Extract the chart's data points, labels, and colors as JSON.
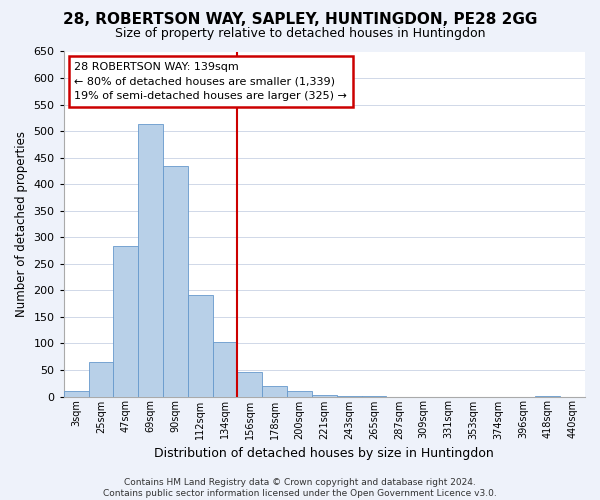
{
  "title": "28, ROBERTSON WAY, SAPLEY, HUNTINGDON, PE28 2GG",
  "subtitle": "Size of property relative to detached houses in Huntingdon",
  "xlabel": "Distribution of detached houses by size in Huntingdon",
  "ylabel": "Number of detached properties",
  "bar_labels": [
    "3sqm",
    "25sqm",
    "47sqm",
    "69sqm",
    "90sqm",
    "112sqm",
    "134sqm",
    "156sqm",
    "178sqm",
    "200sqm",
    "221sqm",
    "243sqm",
    "265sqm",
    "287sqm",
    "309sqm",
    "331sqm",
    "353sqm",
    "374sqm",
    "396sqm",
    "418sqm",
    "440sqm"
  ],
  "bar_heights": [
    10,
    65,
    283,
    513,
    435,
    192,
    103,
    46,
    19,
    10,
    2,
    1,
    1,
    0,
    0,
    0,
    0,
    0,
    0,
    1,
    0
  ],
  "bar_color": "#b8d0e8",
  "bar_edge_color": "#6699cc",
  "vline_x": 7,
  "vline_color": "#cc0000",
  "annotation_lines": [
    "28 ROBERTSON WAY: 139sqm",
    "← 80% of detached houses are smaller (1,339)",
    "19% of semi-detached houses are larger (325) →"
  ],
  "ylim": [
    0,
    650
  ],
  "yticks": [
    0,
    50,
    100,
    150,
    200,
    250,
    300,
    350,
    400,
    450,
    500,
    550,
    600,
    650
  ],
  "footer_lines": [
    "Contains HM Land Registry data © Crown copyright and database right 2024.",
    "Contains public sector information licensed under the Open Government Licence v3.0."
  ],
  "bg_color": "#eef2fa",
  "plot_bg_color": "#ffffff",
  "grid_color": "#d0d8e8",
  "title_fontsize": 11,
  "subtitle_fontsize": 9
}
